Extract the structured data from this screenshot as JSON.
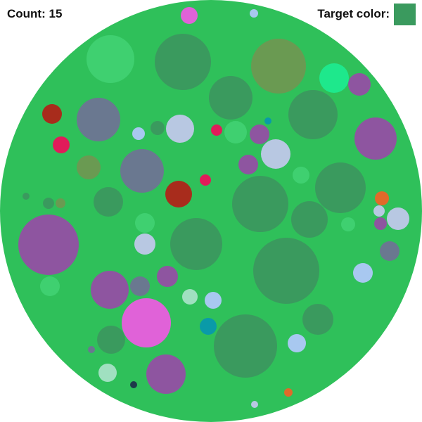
{
  "hud": {
    "count_label": "Count:",
    "count_value": "15",
    "target_label": "Target color:",
    "target_color": "#3a9a5e"
  },
  "board": {
    "background": "#2fc05a"
  },
  "circles": [
    {
      "color": "#e062d8"
    },
    {
      "color": "#a8c8f0"
    },
    {
      "color": "#3fd070"
    },
    {
      "color": "#3a9a5e"
    },
    {
      "color": "#6a9a52"
    },
    {
      "color": "#1ee88c"
    },
    {
      "color": "#8e55a0"
    },
    {
      "color": "#3a9a5e"
    },
    {
      "color": "#3a9a5e"
    },
    {
      "color": "#a82c1c"
    },
    {
      "color": "#6a7890"
    },
    {
      "color": "#a8c8f0"
    },
    {
      "color": "#3a9a5e"
    },
    {
      "color": "#b8c8e2"
    },
    {
      "color": "#e01c5a"
    },
    {
      "color": "#3fd070"
    },
    {
      "color": "#8e55a0"
    },
    {
      "color": "#0a9aa8"
    },
    {
      "color": "#8e55a0"
    },
    {
      "color": "#e01c5a"
    },
    {
      "color": "#6a9a52"
    },
    {
      "color": "#6a7890"
    },
    {
      "color": "#b8c8e2"
    },
    {
      "color": "#8e55a0"
    },
    {
      "color": "#3fd070"
    },
    {
      "color": "#a82c1c"
    },
    {
      "color": "#e01c5a"
    },
    {
      "color": "#3a9a5e"
    },
    {
      "color": "#3a9a5e"
    },
    {
      "color": "#3a9a5e"
    },
    {
      "color": "#e06a2a"
    },
    {
      "color": "#3a9a5e"
    },
    {
      "color": "#3a9a5e"
    },
    {
      "color": "#6a9a52"
    },
    {
      "color": "#3a9a5e"
    },
    {
      "color": "#3fd070"
    },
    {
      "color": "#3a9a5e"
    },
    {
      "color": "#3fd070"
    },
    {
      "color": "#b8c8e2"
    },
    {
      "color": "#b8c8e2"
    },
    {
      "color": "#8e55a0"
    },
    {
      "color": "#8e55a0"
    },
    {
      "color": "#3a9a5e"
    },
    {
      "color": "#6a7890"
    },
    {
      "color": "#b8c8e2"
    },
    {
      "color": "#3fd070"
    },
    {
      "color": "#8e55a0"
    },
    {
      "color": "#6a7890"
    },
    {
      "color": "#8e55a0"
    },
    {
      "color": "#a8c8f0"
    },
    {
      "color": "#a0e0c0"
    },
    {
      "color": "#a8c8f0"
    },
    {
      "color": "#e062d8"
    },
    {
      "color": "#0a9aa8"
    },
    {
      "color": "#3a9a5e"
    },
    {
      "color": "#3a9a5e"
    },
    {
      "color": "#3a9a5e"
    },
    {
      "color": "#a8c8f0"
    },
    {
      "color": "#6a7890"
    },
    {
      "color": "#a0e0c0"
    },
    {
      "color": "#8e55a0"
    },
    {
      "color": "#1e3a4a"
    },
    {
      "color": "#e06a2a"
    },
    {
      "color": "#b8c8e2"
    }
  ]
}
